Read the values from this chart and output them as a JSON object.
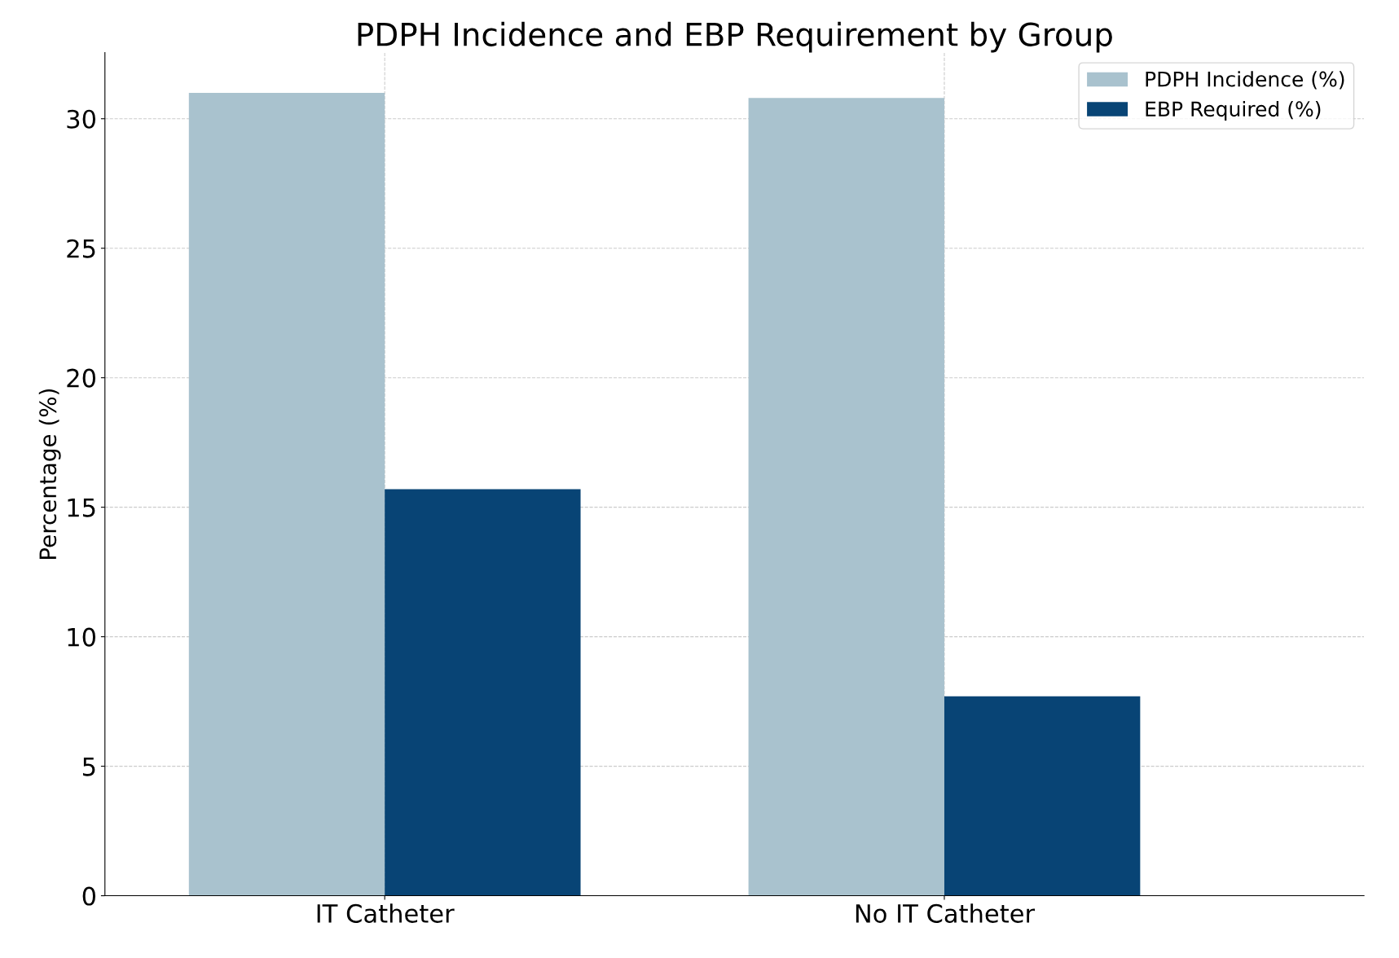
{
  "chart_data": {
    "type": "bar",
    "title": "PDPH Incidence and EBP Requirement by Group",
    "ylabel": "Percentage (%)",
    "categories": [
      "IT Catheter",
      "No IT Catheter"
    ],
    "series": [
      {
        "name": "PDPH Incidence (%)",
        "color": "#a9c2ce",
        "values": [
          31.0,
          30.8
        ]
      },
      {
        "name": "EBP Required (%)",
        "color": "#084475",
        "values": [
          15.7,
          7.7
        ]
      }
    ],
    "ylim": [
      0,
      32.55
    ],
    "yticks": [
      0,
      5,
      10,
      15,
      20,
      25,
      30
    ],
    "grid": true,
    "legend": "top right"
  }
}
